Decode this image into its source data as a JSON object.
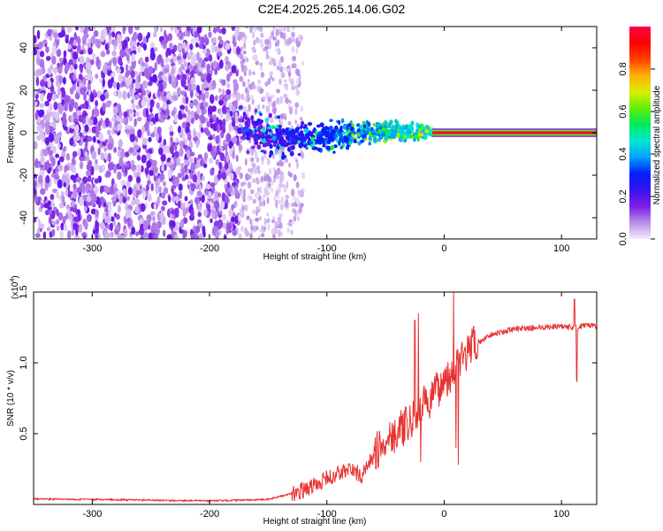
{
  "chart_data": [
    {
      "type": "heatmap",
      "title": "C2E4.2025.265.14.06.G02",
      "xlabel": "Height of straight line (km)",
      "ylabel": "Frequency (Hz)",
      "xlim": [
        -350,
        130
      ],
      "ylim": [
        -50,
        50
      ],
      "x_ticks": [
        -300,
        -200,
        -100,
        0,
        100
      ],
      "y_ticks": [
        -40,
        -20,
        0,
        20,
        40
      ],
      "colorbar": {
        "label": "Normalized spectral amplitude",
        "range": [
          0,
          1
        ],
        "ticks": [
          "0.0",
          "0.2",
          "0.4",
          "0.6",
          "0.8"
        ],
        "colors": [
          "#f2ecfb",
          "#b98ce8",
          "#7a1ee6",
          "#3a10f0",
          "#0020ff",
          "#00a0ff",
          "#00e8d0",
          "#00e860",
          "#60f000",
          "#d8f000",
          "#ffb000",
          "#ff4000",
          "#ff0000",
          "#ff0048"
        ]
      },
      "regions": [
        {
          "name": "noise",
          "x_range": [
            -350,
            -175
          ],
          "freq_spread_hz": 50,
          "amplitude": 0.15
        },
        {
          "name": "transition",
          "x_range": [
            -175,
            -120
          ],
          "freq_spread_hz": 50,
          "amplitude": 0.08
        },
        {
          "name": "signal-onset",
          "x_range": [
            -175,
            -10
          ],
          "center_freq_hz": 0,
          "freq_spread_hz": [
            10,
            3
          ],
          "amplitude": [
            0.15,
            0.5
          ]
        },
        {
          "name": "carrier",
          "x_range": [
            -10,
            130
          ],
          "center_freq_hz": 0,
          "amplitude": 0.95
        }
      ]
    },
    {
      "type": "line",
      "xlabel": "Height of straight line (km)",
      "ylabel": "SNR (10 * v/v)",
      "y_scale_label": "(x10",
      "y_scale_exponent": "4",
      "xlim": [
        -350,
        130
      ],
      "ylim": [
        0,
        1.5
      ],
      "x_ticks": [
        -300,
        -200,
        -100,
        0,
        100
      ],
      "y_ticks": [
        "0.5",
        "1.0",
        "1.5"
      ],
      "series": [
        {
          "name": "SNR",
          "color": "#e83030",
          "x": [
            -350,
            -300,
            -250,
            -200,
            -150,
            -120,
            -100,
            -90,
            -80,
            -70,
            -60,
            -50,
            -45,
            -40,
            -35,
            -30,
            -25,
            -20,
            -15,
            -10,
            -5,
            0,
            5,
            10,
            15,
            20,
            25,
            30,
            35,
            40,
            50,
            60,
            80,
            100,
            110,
            120,
            130
          ],
          "values": [
            0.04,
            0.035,
            0.03,
            0.025,
            0.035,
            0.1,
            0.18,
            0.22,
            0.25,
            0.2,
            0.35,
            0.45,
            0.5,
            0.5,
            0.55,
            0.55,
            0.62,
            0.68,
            0.72,
            0.75,
            0.82,
            0.88,
            0.92,
            0.98,
            1.02,
            1.08,
            1.12,
            1.14,
            1.18,
            1.2,
            1.22,
            1.24,
            1.25,
            1.26,
            1.25,
            1.26,
            1.26
          ],
          "spikes": [
            {
              "x": -25,
              "value": 1.3
            },
            {
              "x": -22,
              "value": 1.35
            },
            {
              "x": -20,
              "value": 0.3
            },
            {
              "x": 8,
              "value": 1.5
            },
            {
              "x": 10,
              "value": 0.4
            },
            {
              "x": 12,
              "value": 0.28
            },
            {
              "x": 111,
              "value": 1.45
            },
            {
              "x": 113,
              "value": 0.87
            }
          ]
        }
      ]
    }
  ]
}
